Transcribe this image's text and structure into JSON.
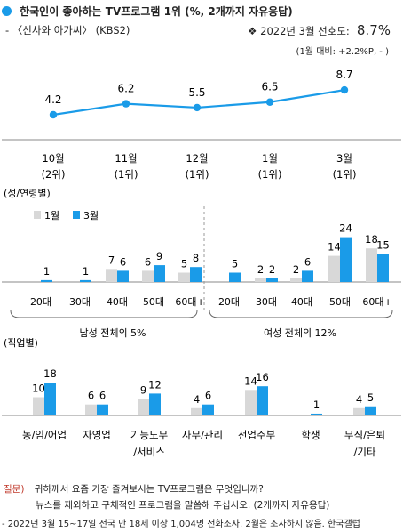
{
  "header": {
    "title": "한국인이 좋아하는 TV프로그램 1위 (%, 2개까지 자유응답)",
    "subtitle": "- 〈신사와 아가씨〉 (KBS2)",
    "pref_label": "❖ 2022년 3월 선호도:",
    "pref_value": "8.7%",
    "change_note": "(1월 대비: +2.2%P, - )"
  },
  "colors": {
    "accent": "#1a9be8",
    "gray": "#d8d8d8",
    "dot": "#1a9be8"
  },
  "chart_data": [
    {
      "type": "line",
      "categories": [
        "10월",
        "11월",
        "12월",
        "1월",
        "3월"
      ],
      "ranks": [
        "(2위)",
        "(1위)",
        "(1위)",
        "(1위)",
        "(1위)"
      ],
      "values": [
        4.2,
        6.2,
        5.5,
        6.5,
        8.7
      ]
    },
    {
      "type": "bar",
      "section_label": "(성/연령별)",
      "legend": [
        "1월",
        "3월"
      ],
      "categories": [
        "20대",
        "30대",
        "40대",
        "50대",
        "60대+",
        "20대",
        "30대",
        "40대",
        "50대",
        "60대+"
      ],
      "series": [
        {
          "name": "1월",
          "values": [
            null,
            null,
            7,
            6,
            5,
            null,
            2,
            2,
            14,
            18
          ]
        },
        {
          "name": "3월",
          "values": [
            1,
            1,
            6,
            9,
            8,
            5,
            2,
            6,
            24,
            15
          ]
        }
      ],
      "group_labels": [
        "남성 전체의 5%",
        "여성 전체의 12%"
      ]
    },
    {
      "type": "bar",
      "section_label": "(직업별)",
      "categories": [
        "농/임/어업",
        "자영업",
        "기능노무\n/서비스",
        "사무/관리",
        "전업주부",
        "학생",
        "무직/은퇴\n/기타"
      ],
      "series": [
        {
          "name": "1월",
          "values": [
            10,
            6,
            9,
            4,
            14,
            null,
            4
          ]
        },
        {
          "name": "3월",
          "values": [
            18,
            6,
            12,
            6,
            16,
            1,
            5
          ]
        }
      ]
    }
  ],
  "footer": {
    "q_label": "질문)",
    "q_line1": "귀하께서 요즘 가장 즐겨보시는 TV프로그램은 무엇입니까?",
    "q_line2": "뉴스를 제외하고 구체적인 프로그램을 말씀해 주십시오. (2개까지 자유응답)",
    "source": "- 2022년 3월 15~17일 전국 만 18세 이상 1,004명 전화조사. 2월은 조사하지 않음. 한국갤럽"
  }
}
